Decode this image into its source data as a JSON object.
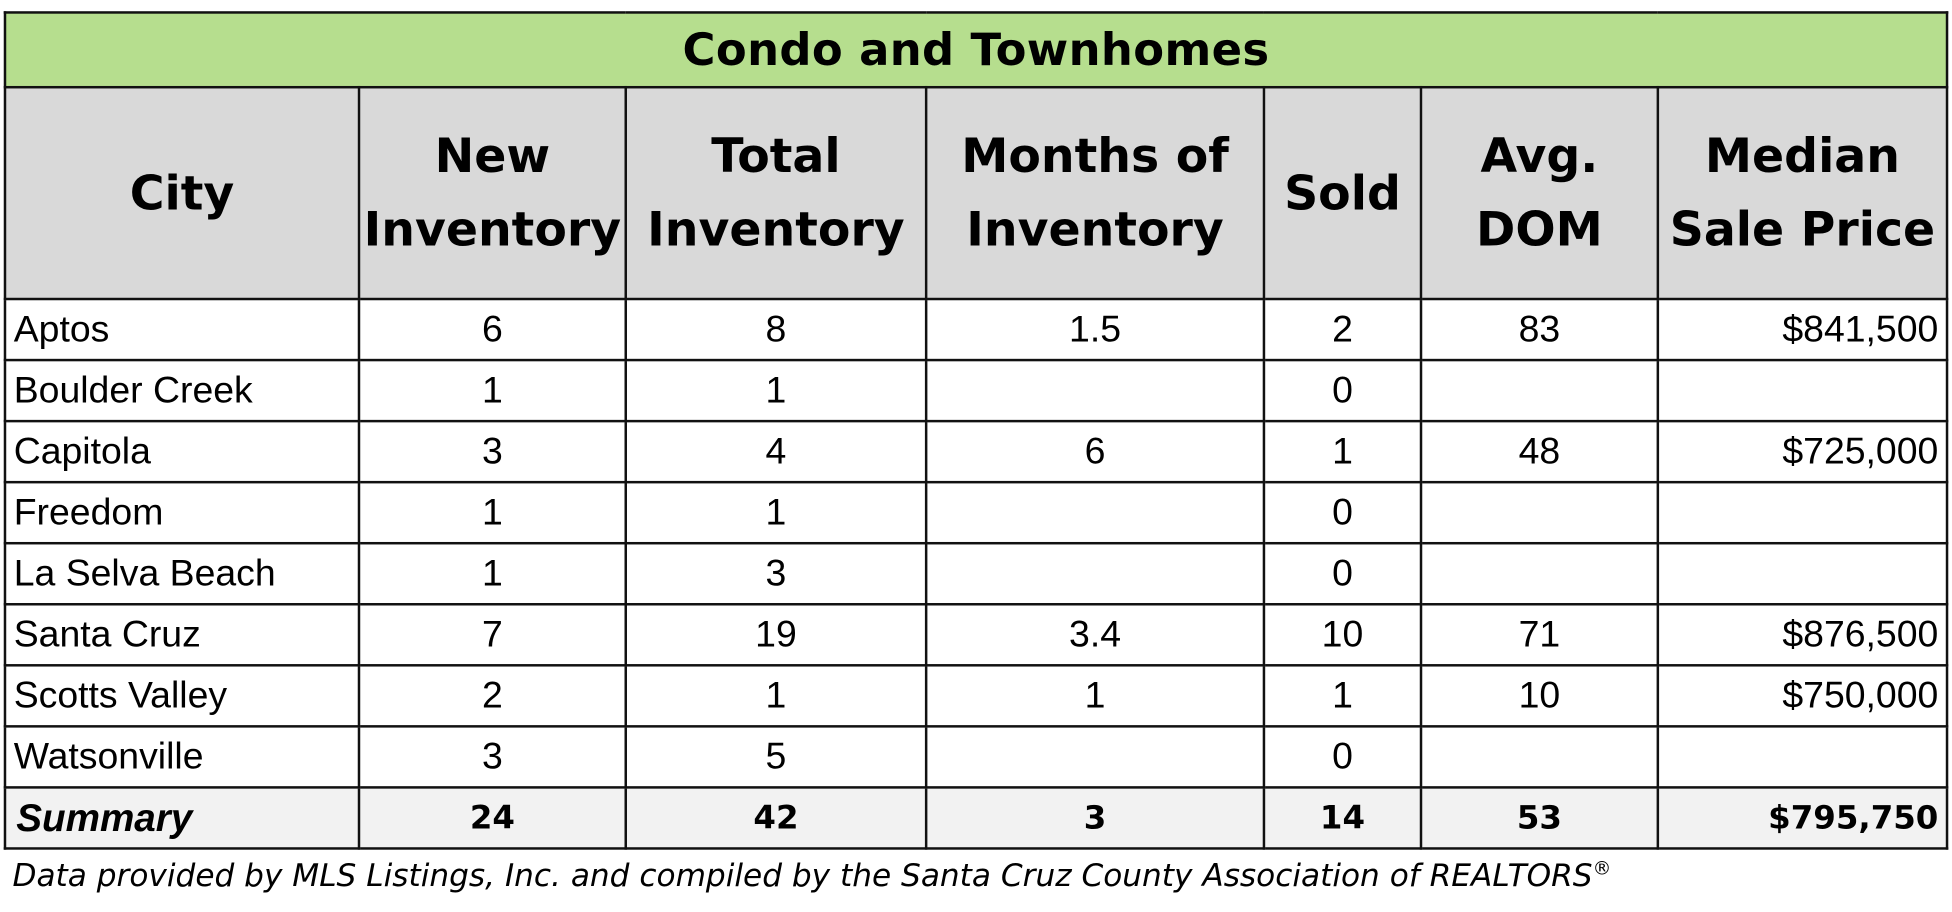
{
  "table": {
    "title": "Condo and Townhomes",
    "headers": [
      {
        "line1": "City",
        "line2": ""
      },
      {
        "line1": "New",
        "line2": "Inventory"
      },
      {
        "line1": "Total",
        "line2": "Inventory"
      },
      {
        "line1": "Months of",
        "line2": "Inventory"
      },
      {
        "line1": "Sold",
        "line2": ""
      },
      {
        "line1": "Avg.",
        "line2": "DOM"
      },
      {
        "line1": "Median",
        "line2": "Sale Price"
      }
    ],
    "rows": [
      {
        "city": "Aptos",
        "new_inventory": "6",
        "total_inventory": "8",
        "months_of_inventory": "1.5",
        "sold": "2",
        "avg_dom": "83",
        "median_sale_price": "$841,500"
      },
      {
        "city": "Boulder Creek",
        "new_inventory": "1",
        "total_inventory": "1",
        "months_of_inventory": "",
        "sold": "0",
        "avg_dom": "",
        "median_sale_price": ""
      },
      {
        "city": "Capitola",
        "new_inventory": "3",
        "total_inventory": "4",
        "months_of_inventory": "6",
        "sold": "1",
        "avg_dom": "48",
        "median_sale_price": "$725,000"
      },
      {
        "city": "Freedom",
        "new_inventory": "1",
        "total_inventory": "1",
        "months_of_inventory": "",
        "sold": "0",
        "avg_dom": "",
        "median_sale_price": ""
      },
      {
        "city": "La Selva Beach",
        "new_inventory": "1",
        "total_inventory": "3",
        "months_of_inventory": "",
        "sold": "0",
        "avg_dom": "",
        "median_sale_price": ""
      },
      {
        "city": "Santa Cruz",
        "new_inventory": "7",
        "total_inventory": "19",
        "months_of_inventory": "3.4",
        "sold": "10",
        "avg_dom": "71",
        "median_sale_price": "$876,500"
      },
      {
        "city": "Scotts Valley",
        "new_inventory": "2",
        "total_inventory": "1",
        "months_of_inventory": "1",
        "sold": "1",
        "avg_dom": "10",
        "median_sale_price": "$750,000"
      },
      {
        "city": "Watsonville",
        "new_inventory": "3",
        "total_inventory": "5",
        "months_of_inventory": "",
        "sold": "0",
        "avg_dom": "",
        "median_sale_price": ""
      }
    ],
    "summary": {
      "label": "Summary",
      "new_inventory": "24",
      "total_inventory": "42",
      "months_of_inventory": "3",
      "sold": "14",
      "avg_dom": "53",
      "median_sale_price": "$795,750"
    }
  },
  "footnote": {
    "text": "Data provided by MLS Listings, Inc. and compiled by the Santa Cruz County Association of REALTORS",
    "mark": "®"
  },
  "colors": {
    "title_background": "#b6de8e",
    "header_background": "#d9d9d9",
    "summary_background": "#f2f2f2",
    "border": "#111111"
  }
}
